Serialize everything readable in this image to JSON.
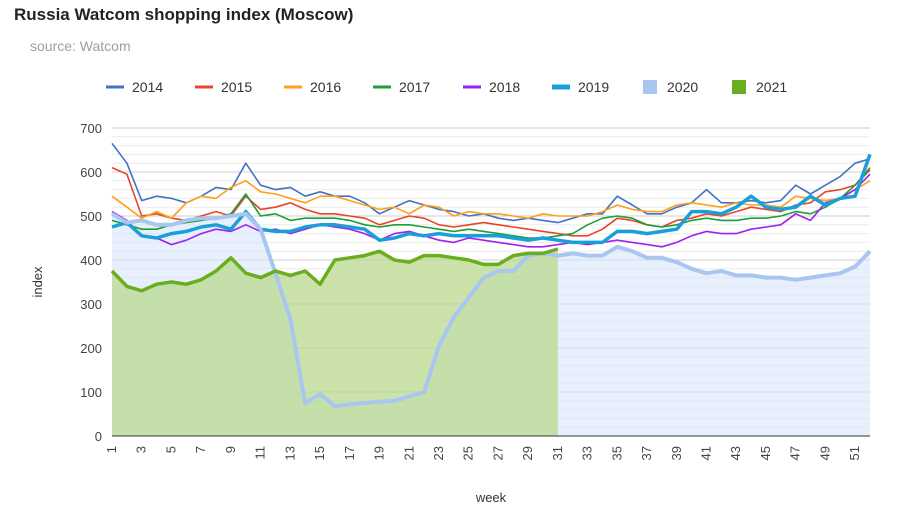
{
  "title": "Russia Watcom shopping index (Moscow)",
  "subtitle": "source: Watcom",
  "chart_data": {
    "type": "line",
    "xlabel": "week",
    "ylabel": "index",
    "xlim": [
      1,
      52
    ],
    "ylim": [
      0,
      700
    ],
    "yticks": [
      0,
      100,
      200,
      300,
      400,
      500,
      600,
      700
    ],
    "xticks": [
      1,
      3,
      5,
      7,
      9,
      11,
      13,
      15,
      17,
      19,
      21,
      23,
      25,
      27,
      29,
      31,
      33,
      35,
      37,
      39,
      41,
      43,
      45,
      47,
      49,
      51
    ],
    "grid": true,
    "legend": "top",
    "series": [
      {
        "name": "2014",
        "style": "line",
        "color": "#4472c4",
        "x": [
          1,
          2,
          3,
          4,
          5,
          6,
          7,
          8,
          9,
          10,
          11,
          12,
          13,
          14,
          15,
          16,
          17,
          18,
          19,
          20,
          21,
          22,
          23,
          24,
          25,
          26,
          27,
          28,
          29,
          30,
          31,
          32,
          33,
          34,
          35,
          36,
          37,
          38,
          39,
          40,
          41,
          42,
          43,
          44,
          45,
          46,
          47,
          48,
          49,
          50,
          51,
          52
        ],
        "values": [
          665,
          620,
          535,
          545,
          540,
          530,
          545,
          565,
          560,
          620,
          570,
          560,
          565,
          545,
          555,
          545,
          545,
          530,
          505,
          520,
          535,
          525,
          515,
          510,
          500,
          505,
          495,
          490,
          495,
          490,
          485,
          495,
          505,
          505,
          545,
          525,
          505,
          505,
          520,
          530,
          560,
          530,
          530,
          535,
          530,
          535,
          570,
          550,
          570,
          590,
          620,
          630
        ]
      },
      {
        "name": "2015",
        "style": "line",
        "color": "#e8452c",
        "x": [
          1,
          2,
          3,
          4,
          5,
          6,
          7,
          8,
          9,
          10,
          11,
          12,
          13,
          14,
          15,
          16,
          17,
          18,
          19,
          20,
          21,
          22,
          23,
          24,
          25,
          26,
          27,
          28,
          29,
          30,
          31,
          32,
          33,
          34,
          35,
          36,
          37,
          38,
          39,
          40,
          41,
          42,
          43,
          44,
          45,
          46,
          47,
          48,
          49,
          50,
          51,
          52
        ],
        "values": [
          610,
          595,
          500,
          505,
          495,
          490,
          500,
          510,
          500,
          545,
          515,
          520,
          530,
          515,
          505,
          505,
          500,
          495,
          480,
          490,
          500,
          495,
          480,
          475,
          480,
          485,
          480,
          475,
          470,
          465,
          460,
          455,
          455,
          470,
          495,
          490,
          480,
          475,
          490,
          495,
          505,
          500,
          510,
          520,
          515,
          510,
          525,
          530,
          555,
          560,
          570,
          610
        ]
      },
      {
        "name": "2016",
        "style": "line",
        "color": "#ff9f1a",
        "x": [
          1,
          2,
          3,
          4,
          5,
          6,
          7,
          8,
          9,
          10,
          11,
          12,
          13,
          14,
          15,
          16,
          17,
          18,
          19,
          20,
          21,
          22,
          23,
          24,
          25,
          26,
          27,
          28,
          29,
          30,
          31,
          32,
          33,
          34,
          35,
          36,
          37,
          38,
          39,
          40,
          41,
          42,
          43,
          44,
          45,
          46,
          47,
          48,
          49,
          50,
          51,
          52
        ],
        "values": [
          545,
          520,
          495,
          510,
          495,
          530,
          545,
          540,
          565,
          580,
          555,
          550,
          540,
          530,
          545,
          545,
          535,
          525,
          515,
          520,
          505,
          525,
          520,
          500,
          510,
          505,
          505,
          500,
          495,
          505,
          500,
          500,
          500,
          510,
          525,
          515,
          510,
          510,
          525,
          530,
          525,
          520,
          530,
          525,
          525,
          520,
          545,
          540,
          535,
          540,
          560,
          580
        ]
      },
      {
        "name": "2017",
        "style": "line",
        "color": "#1e9e39",
        "x": [
          1,
          2,
          3,
          4,
          5,
          6,
          7,
          8,
          9,
          10,
          11,
          12,
          13,
          14,
          15,
          16,
          17,
          18,
          19,
          20,
          21,
          22,
          23,
          24,
          25,
          26,
          27,
          28,
          29,
          30,
          31,
          32,
          33,
          34,
          35,
          36,
          37,
          38,
          39,
          40,
          41,
          42,
          43,
          44,
          45,
          46,
          47,
          48,
          49,
          50,
          51,
          52
        ],
        "values": [
          490,
          480,
          470,
          470,
          480,
          485,
          490,
          495,
          505,
          550,
          500,
          505,
          490,
          495,
          495,
          495,
          490,
          480,
          475,
          480,
          480,
          475,
          470,
          465,
          470,
          465,
          460,
          455,
          450,
          450,
          455,
          460,
          480,
          495,
          500,
          495,
          480,
          475,
          480,
          490,
          495,
          490,
          490,
          495,
          495,
          500,
          510,
          505,
          520,
          540,
          570,
          605
        ]
      },
      {
        "name": "2018",
        "style": "line",
        "color": "#a020f0",
        "x": [
          1,
          2,
          3,
          4,
          5,
          6,
          7,
          8,
          9,
          10,
          11,
          12,
          13,
          14,
          15,
          16,
          17,
          18,
          19,
          20,
          21,
          22,
          23,
          24,
          25,
          26,
          27,
          28,
          29,
          30,
          31,
          32,
          33,
          34,
          35,
          36,
          37,
          38,
          39,
          40,
          41,
          42,
          43,
          44,
          45,
          46,
          47,
          48,
          49,
          50,
          51,
          52
        ],
        "values": [
          510,
          490,
          455,
          450,
          435,
          445,
          460,
          470,
          465,
          480,
          465,
          470,
          460,
          470,
          480,
          475,
          470,
          460,
          445,
          460,
          465,
          455,
          445,
          440,
          450,
          445,
          440,
          435,
          430,
          430,
          435,
          440,
          435,
          440,
          445,
          440,
          435,
          430,
          440,
          455,
          465,
          460,
          460,
          470,
          475,
          480,
          505,
          490,
          530,
          540,
          560,
          595
        ]
      },
      {
        "name": "2019",
        "style": "line",
        "thick": true,
        "color": "#1aa0d8",
        "x": [
          1,
          2,
          3,
          4,
          5,
          6,
          7,
          8,
          9,
          10,
          11,
          12,
          13,
          14,
          15,
          16,
          17,
          18,
          19,
          20,
          21,
          22,
          23,
          24,
          25,
          26,
          27,
          28,
          29,
          30,
          31,
          32,
          33,
          34,
          35,
          36,
          37,
          38,
          39,
          40,
          41,
          42,
          43,
          44,
          45,
          46,
          47,
          48,
          49,
          50,
          51,
          52
        ],
        "values": [
          475,
          485,
          455,
          450,
          460,
          465,
          475,
          480,
          470,
          510,
          470,
          465,
          465,
          475,
          480,
          480,
          475,
          470,
          445,
          450,
          460,
          455,
          460,
          455,
          455,
          455,
          455,
          450,
          445,
          450,
          445,
          440,
          440,
          440,
          465,
          465,
          460,
          465,
          470,
          510,
          510,
          505,
          520,
          545,
          520,
          515,
          520,
          545,
          525,
          540,
          545,
          640
        ]
      },
      {
        "name": "2020",
        "style": "area",
        "color": "#a8c6f0",
        "fill": "#d9e6fb",
        "x": [
          1,
          2,
          3,
          4,
          5,
          6,
          7,
          8,
          9,
          10,
          11,
          12,
          13,
          14,
          15,
          16,
          17,
          18,
          19,
          20,
          21,
          22,
          23,
          24,
          25,
          26,
          27,
          28,
          29,
          30,
          31,
          32,
          33,
          34,
          35,
          36,
          37,
          38,
          39,
          40,
          41,
          42,
          43,
          44,
          45,
          46,
          47,
          48,
          49,
          50,
          51,
          52
        ],
        "values": [
          505,
          485,
          490,
          480,
          480,
          490,
          495,
          495,
          500,
          505,
          470,
          370,
          265,
          75,
          95,
          68,
          72,
          75,
          78,
          80,
          90,
          100,
          205,
          270,
          315,
          360,
          375,
          375,
          410,
          415,
          410,
          415,
          410,
          410,
          430,
          420,
          405,
          405,
          395,
          380,
          370,
          375,
          365,
          365,
          360,
          360,
          355,
          360,
          365,
          370,
          385,
          420
        ]
      },
      {
        "name": "2021",
        "style": "area",
        "color": "#6aad1e",
        "fill": "#b9d98f",
        "x": [
          1,
          2,
          3,
          4,
          5,
          6,
          7,
          8,
          9,
          10,
          11,
          12,
          13,
          14,
          15,
          16,
          17,
          18,
          19,
          20,
          21,
          22,
          23,
          24,
          25,
          26,
          27,
          28,
          29,
          30,
          31
        ],
        "values": [
          375,
          340,
          330,
          345,
          350,
          345,
          355,
          375,
          405,
          370,
          360,
          375,
          365,
          375,
          345,
          400,
          405,
          410,
          420,
          400,
          395,
          410,
          410,
          405,
          400,
          390,
          390,
          410,
          415,
          415,
          425
        ]
      }
    ]
  }
}
